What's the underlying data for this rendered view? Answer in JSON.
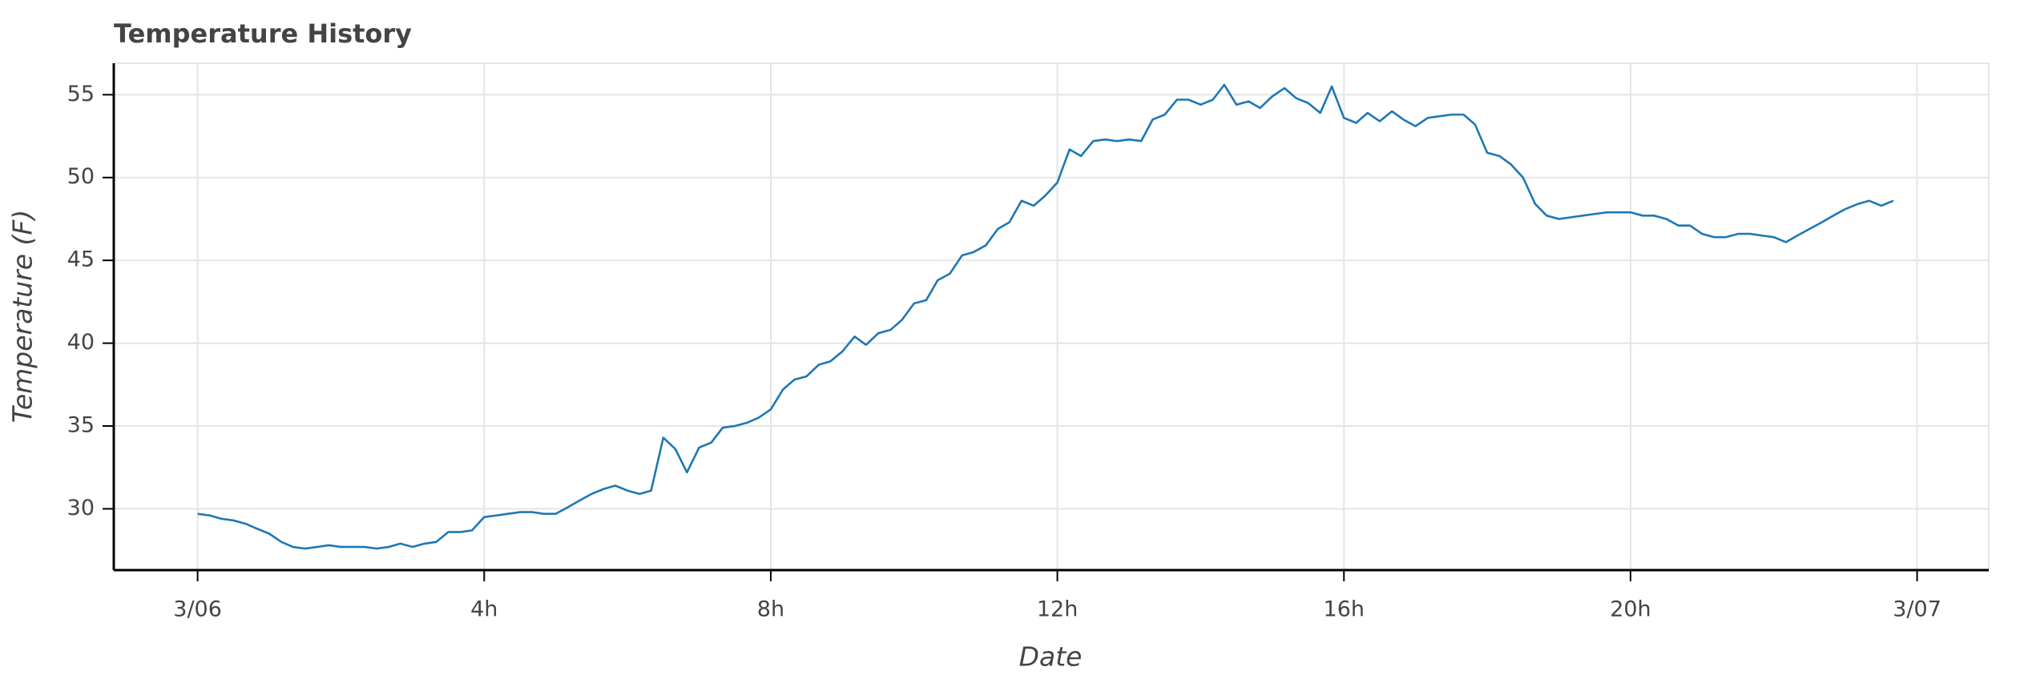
{
  "chart_data": {
    "type": "line",
    "title": "Temperature History",
    "x_label": "Date",
    "y_label": "Temperature (F)",
    "x": [
      0,
      0.17,
      0.33,
      0.5,
      0.67,
      0.83,
      1,
      1.17,
      1.33,
      1.5,
      1.67,
      1.83,
      2,
      2.17,
      2.33,
      2.5,
      2.67,
      2.83,
      3,
      3.17,
      3.33,
      3.5,
      3.67,
      3.83,
      4,
      4.17,
      4.33,
      4.5,
      4.67,
      4.83,
      5,
      5.17,
      5.33,
      5.5,
      5.67,
      5.83,
      6,
      6.17,
      6.33,
      6.5,
      6.67,
      6.83,
      7,
      7.17,
      7.33,
      7.5,
      7.67,
      7.83,
      8,
      8.17,
      8.33,
      8.5,
      8.67,
      8.83,
      9,
      9.17,
      9.33,
      9.5,
      9.67,
      9.83,
      10,
      10.17,
      10.33,
      10.5,
      10.67,
      10.83,
      11,
      11.17,
      11.33,
      11.5,
      11.67,
      11.83,
      12,
      12.17,
      12.33,
      12.5,
      12.67,
      12.83,
      13,
      13.17,
      13.33,
      13.5,
      13.67,
      13.83,
      14,
      14.17,
      14.33,
      14.5,
      14.67,
      14.83,
      15,
      15.17,
      15.33,
      15.5,
      15.67,
      15.83,
      16,
      16.17,
      16.33,
      16.5,
      16.67,
      16.83,
      17,
      17.17,
      17.33,
      17.5,
      17.67,
      17.83,
      18,
      18.17,
      18.33,
      18.5,
      18.67,
      18.83,
      19,
      19.17,
      19.33,
      19.5,
      19.67,
      19.83,
      20,
      20.17,
      20.33,
      20.5,
      20.67,
      20.83,
      21,
      21.17,
      21.33,
      21.5,
      21.67,
      21.83,
      22,
      22.17,
      22.33,
      22.5,
      22.67,
      22.83,
      23,
      23.17,
      23.33,
      23.5,
      23.67
    ],
    "series": [
      {
        "color": "#1f77b4",
        "values": [
          29.7,
          29.6,
          29.4,
          29.3,
          29.1,
          28.8,
          28.5,
          28.0,
          27.7,
          27.6,
          27.7,
          27.8,
          27.7,
          27.7,
          27.7,
          27.6,
          27.7,
          27.9,
          27.7,
          27.9,
          28.0,
          28.6,
          28.6,
          28.7,
          29.5,
          29.6,
          29.7,
          29.8,
          29.8,
          29.7,
          29.7,
          30.1,
          30.5,
          30.9,
          31.2,
          31.4,
          31.1,
          30.9,
          31.1,
          34.3,
          33.6,
          32.2,
          33.7,
          34.0,
          34.9,
          35.0,
          35.2,
          35.5,
          36.0,
          37.2,
          37.8,
          38.0,
          38.7,
          38.9,
          39.5,
          40.4,
          39.9,
          40.6,
          40.8,
          41.4,
          42.4,
          42.6,
          43.8,
          44.2,
          45.3,
          45.5,
          45.9,
          46.9,
          47.3,
          48.6,
          48.3,
          48.9,
          49.7,
          51.7,
          51.3,
          52.2,
          52.3,
          52.2,
          52.3,
          52.2,
          53.5,
          53.8,
          54.7,
          54.7,
          54.4,
          54.7,
          55.6,
          54.4,
          54.6,
          54.2,
          54.9,
          55.4,
          54.8,
          54.5,
          53.9,
          55.5,
          53.6,
          53.3,
          53.9,
          53.4,
          54.0,
          53.5,
          53.1,
          53.6,
          53.7,
          53.8,
          53.8,
          53.2,
          51.5,
          51.3,
          50.8,
          50.0,
          48.4,
          47.7,
          47.5,
          47.6,
          47.7,
          47.8,
          47.9,
          47.9,
          47.9,
          47.7,
          47.7,
          47.5,
          47.1,
          47.1,
          46.6,
          46.4,
          46.4,
          46.6,
          46.6,
          46.5,
          46.4,
          46.1,
          46.5,
          46.9,
          47.3,
          47.7,
          48.1,
          48.4,
          48.6,
          48.3,
          48.6
        ]
      }
    ],
    "xlim": [
      -1.17,
      25.0
    ],
    "ylim": [
      26.3,
      56.9
    ],
    "xticks": [
      {
        "value": 0,
        "label": "3/06"
      },
      {
        "value": 4,
        "label": "4h"
      },
      {
        "value": 8,
        "label": "8h"
      },
      {
        "value": 12,
        "label": "12h"
      },
      {
        "value": 16,
        "label": "16h"
      },
      {
        "value": 20,
        "label": "20h"
      },
      {
        "value": 24,
        "label": "3/07"
      }
    ],
    "yticks": [
      30,
      35,
      40,
      45,
      50,
      55
    ],
    "grid": true
  }
}
